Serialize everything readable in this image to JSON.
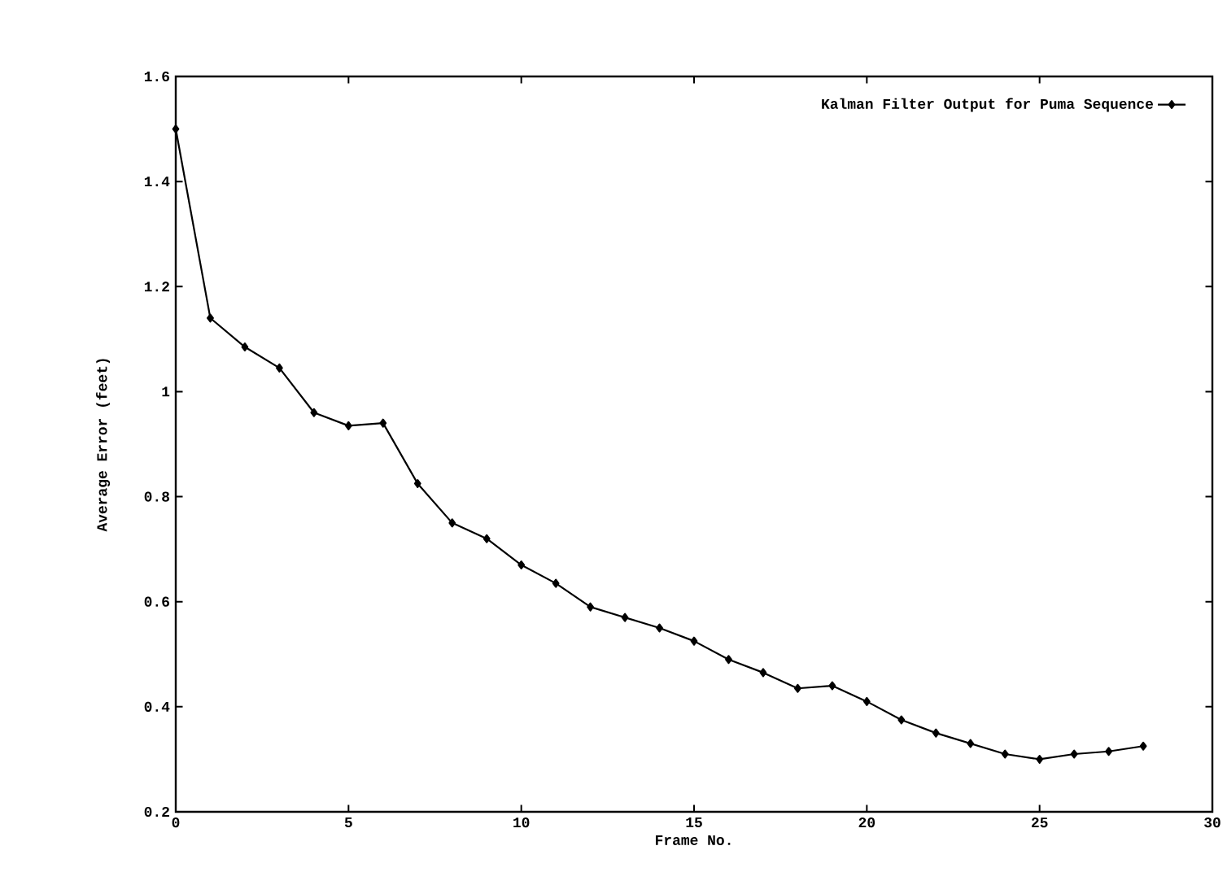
{
  "chart_data": {
    "type": "line",
    "xlabel": "Frame No.",
    "ylabel": "Average Error (feet)",
    "x": [
      0,
      1,
      2,
      3,
      4,
      5,
      6,
      7,
      8,
      9,
      10,
      11,
      12,
      13,
      14,
      15,
      16,
      17,
      18,
      19,
      20,
      21,
      22,
      23,
      24,
      25,
      26,
      27,
      28
    ],
    "series": [
      {
        "name": "Kalman Filter Output for Puma Sequence",
        "color": "#000000",
        "values": [
          1.5,
          1.14,
          1.085,
          1.045,
          0.96,
          0.935,
          0.94,
          0.825,
          0.75,
          0.72,
          0.67,
          0.635,
          0.59,
          0.57,
          0.55,
          0.525,
          0.49,
          0.465,
          0.435,
          0.44,
          0.41,
          0.375,
          0.35,
          0.33,
          0.31,
          0.3,
          0.31,
          0.315,
          0.325
        ]
      }
    ],
    "xlim": [
      0,
      30
    ],
    "ylim": [
      0.2,
      1.6
    ],
    "xticks": [
      0,
      5,
      10,
      15,
      20,
      25,
      30
    ],
    "yticks": [
      0.2,
      0.4,
      0.6,
      0.8,
      1,
      1.2,
      1.4,
      1.6
    ],
    "grid": false,
    "legend": "top right",
    "marker": "diamond",
    "line_style": "solid"
  }
}
